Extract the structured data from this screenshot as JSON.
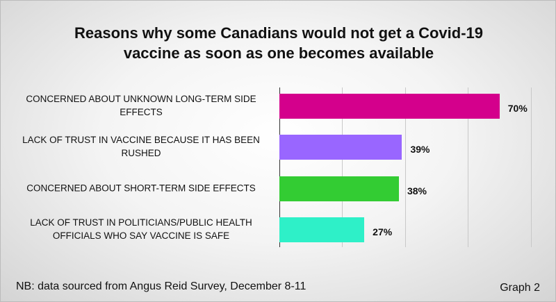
{
  "chart_data": {
    "type": "hbar",
    "title": "Reasons why some Canadians would not get a Covid-19 vaccine as soon as one becomes available",
    "categories": [
      "CONCERNED ABOUT UNKNOWN LONG-TERM SIDE EFFECTS",
      "LACK OF TRUST IN VACCINE BECAUSE IT HAS BEEN RUSHED",
      "CONCERNED ABOUT SHORT-TERM SIDE EFFECTS",
      "LACK OF TRUST IN POLITICIANS/PUBLIC HEALTH OFFICIALS WHO SAY VACCINE IS SAFE"
    ],
    "values": [
      70,
      39,
      38,
      27
    ],
    "value_labels": [
      "70%",
      "39%",
      "38%",
      "27%"
    ],
    "colors": [
      "#d4008c",
      "#9966ff",
      "#33cc33",
      "#2ef0c8"
    ],
    "xlim": [
      0,
      80
    ],
    "xticks": [
      0,
      20,
      40,
      60,
      80
    ],
    "grid": true,
    "note": "NB: data sourced from Angus Reid Survey, December 8-11",
    "label": "Graph 2"
  }
}
